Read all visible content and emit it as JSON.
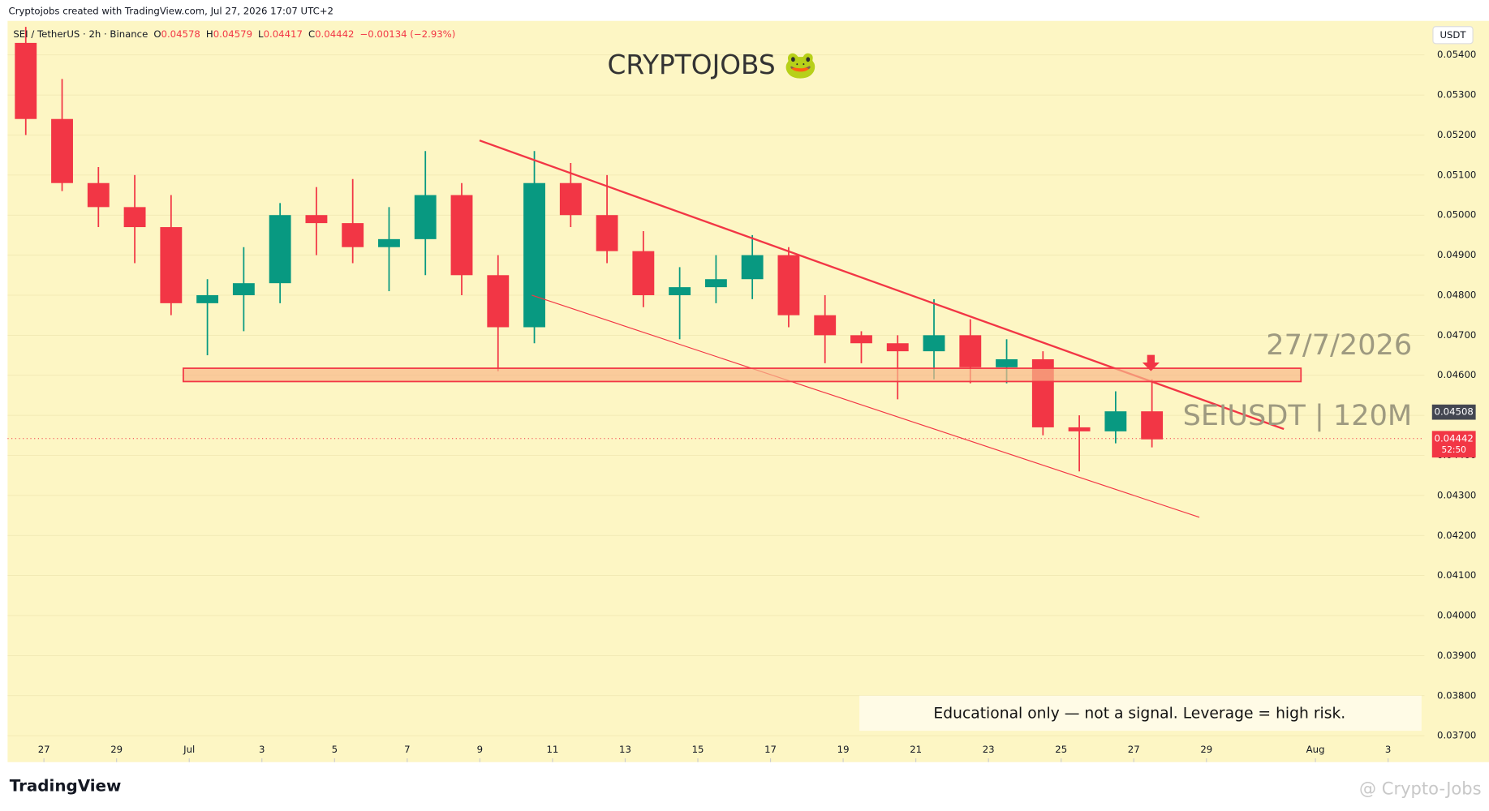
{
  "attribution": "Cryptojobs created with TradingView.com, Jul 27, 2026 17:07 UTC+2",
  "watermark_title": "CRYPTOJOBS 🐸",
  "footer": {
    "logo": "TradingView",
    "credit": "@ Crypto-Jobs"
  },
  "disclaimer": "Educational only — not a signal. Leverage  = high risk.",
  "annotations": {
    "date": "27/7/2026",
    "symbol": "SEIUSDT | 120M"
  },
  "chart_data": {
    "type": "candlestick",
    "symbol": "SEI / TetherUS · 2h · Binance",
    "ohlc_header": {
      "o_label": "O",
      "o": "0.04578",
      "h_label": "H",
      "h": "0.04579",
      "l_label": "L",
      "l": "0.04417",
      "c_label": "C",
      "c": "0.04442",
      "change": "−0.00134 (−2.93%)"
    },
    "currency": "USDT",
    "x": [
      "2026-06-26",
      "2026-06-27",
      "2026-06-28",
      "2026-06-29",
      "2026-06-30",
      "2026-07-01",
      "2026-07-02",
      "2026-07-03",
      "2026-07-04",
      "2026-07-05",
      "2026-07-06",
      "2026-07-07",
      "2026-07-08",
      "2026-07-09",
      "2026-07-10",
      "2026-07-11",
      "2026-07-12",
      "2026-07-13",
      "2026-07-14",
      "2026-07-15",
      "2026-07-16",
      "2026-07-17",
      "2026-07-18",
      "2026-07-19",
      "2026-07-20",
      "2026-07-21",
      "2026-07-22",
      "2026-07-23",
      "2026-07-24",
      "2026-07-25",
      "2026-07-26",
      "2026-07-27"
    ],
    "open": [
      0.0543,
      0.0524,
      0.0508,
      0.0502,
      0.0497,
      0.0478,
      0.048,
      0.0483,
      0.05,
      0.0498,
      0.0492,
      0.0494,
      0.0505,
      0.0485,
      0.0472,
      0.0508,
      0.05,
      0.0491,
      0.048,
      0.0482,
      0.0484,
      0.049,
      0.0475,
      0.047,
      0.0468,
      0.0466,
      0.047,
      0.0462,
      0.0464,
      0.0447,
      0.0446,
      0.0451
    ],
    "high": [
      0.0547,
      0.0534,
      0.0512,
      0.051,
      0.0505,
      0.0484,
      0.0492,
      0.0503,
      0.0507,
      0.0509,
      0.0502,
      0.0516,
      0.0508,
      0.049,
      0.0516,
      0.0513,
      0.051,
      0.0496,
      0.0487,
      0.049,
      0.0495,
      0.0492,
      0.048,
      0.0471,
      0.047,
      0.0479,
      0.0474,
      0.0469,
      0.0466,
      0.045,
      0.0456,
      0.0459
    ],
    "low": [
      0.052,
      0.0506,
      0.0497,
      0.0488,
      0.0475,
      0.0465,
      0.0471,
      0.0478,
      0.049,
      0.0488,
      0.0481,
      0.0485,
      0.048,
      0.0461,
      0.0468,
      0.0497,
      0.0488,
      0.0477,
      0.0469,
      0.0478,
      0.0479,
      0.0472,
      0.0463,
      0.0463,
      0.0454,
      0.0459,
      0.0458,
      0.0458,
      0.0445,
      0.0436,
      0.0443,
      0.0442
    ],
    "close": [
      0.0524,
      0.0508,
      0.0502,
      0.0497,
      0.0478,
      0.048,
      0.0483,
      0.05,
      0.0498,
      0.0492,
      0.0494,
      0.0505,
      0.0485,
      0.0472,
      0.0508,
      0.05,
      0.0491,
      0.048,
      0.0482,
      0.0484,
      0.049,
      0.0475,
      0.047,
      0.0468,
      0.0466,
      0.047,
      0.0462,
      0.0464,
      0.0447,
      0.0446,
      0.0451,
      0.0444
    ],
    "up_color": "#089981",
    "down_color": "#f23645",
    "xlim": [
      "2026-06-26",
      "2026-08-04"
    ],
    "xticks": [
      {
        "value": "2026-06-27",
        "label": "27"
      },
      {
        "value": "2026-06-29",
        "label": "29"
      },
      {
        "value": "2026-07-01",
        "label": "Jul"
      },
      {
        "value": "2026-07-03",
        "label": "3"
      },
      {
        "value": "2026-07-05",
        "label": "5"
      },
      {
        "value": "2026-07-07",
        "label": "7"
      },
      {
        "value": "2026-07-09",
        "label": "9"
      },
      {
        "value": "2026-07-11",
        "label": "11"
      },
      {
        "value": "2026-07-13",
        "label": "13"
      },
      {
        "value": "2026-07-15",
        "label": "15"
      },
      {
        "value": "2026-07-17",
        "label": "17"
      },
      {
        "value": "2026-07-19",
        "label": "19"
      },
      {
        "value": "2026-07-21",
        "label": "21"
      },
      {
        "value": "2026-07-23",
        "label": "23"
      },
      {
        "value": "2026-07-25",
        "label": "25"
      },
      {
        "value": "2026-07-27",
        "label": "27"
      },
      {
        "value": "2026-07-29",
        "label": "29"
      },
      {
        "value": "2026-08-01",
        "label": "Aug"
      },
      {
        "value": "2026-08-03",
        "label": "3"
      }
    ],
    "ylim": [
      0.03634,
      0.05485
    ],
    "yticks": [
      {
        "value": 0.037,
        "label": "0.03700"
      },
      {
        "value": 0.038,
        "label": "0.03800"
      },
      {
        "value": 0.039,
        "label": "0.03900"
      },
      {
        "value": 0.04,
        "label": "0.04000"
      },
      {
        "value": 0.041,
        "label": "0.04100"
      },
      {
        "value": 0.042,
        "label": "0.04200"
      },
      {
        "value": 0.043,
        "label": "0.04300"
      },
      {
        "value": 0.044,
        "label": "0.04400"
      },
      {
        "value": 0.045,
        "label": "0.04500"
      },
      {
        "value": 0.046,
        "label": "0.04600"
      },
      {
        "value": 0.047,
        "label": "0.04700"
      },
      {
        "value": 0.048,
        "label": "0.04800"
      },
      {
        "value": 0.049,
        "label": "0.04900"
      },
      {
        "value": 0.05,
        "label": "0.05000"
      },
      {
        "value": 0.051,
        "label": "0.05100"
      },
      {
        "value": 0.052,
        "label": "0.05200"
      },
      {
        "value": 0.053,
        "label": "0.05300"
      },
      {
        "value": 0.054,
        "label": "0.05400"
      }
    ],
    "marker_price": 0.04508,
    "last_price": 0.04442,
    "countdown": "52:50"
  }
}
